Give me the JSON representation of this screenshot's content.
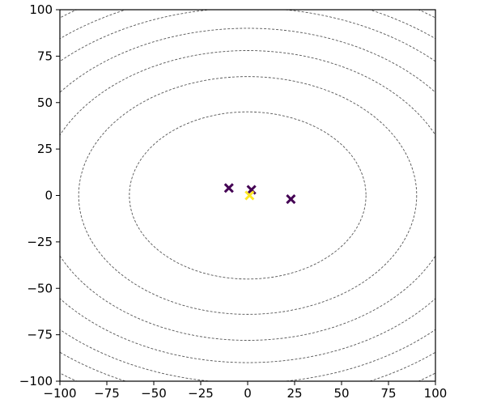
{
  "chart_data": {
    "type": "scatter",
    "marker": "x",
    "series": [
      {
        "color": "#440154",
        "x": [
          -10,
          2,
          23
        ],
        "values": [
          4,
          3,
          -2
        ]
      },
      {
        "color": "#fde725",
        "x": [
          1
        ],
        "values": [
          0
        ]
      }
    ],
    "contours": {
      "center": [
        0,
        0
      ],
      "color": "#555555",
      "rx": [
        63,
        90,
        110,
        127,
        143,
        156,
        168
      ],
      "ry": [
        45,
        64,
        78,
        90,
        101,
        110,
        119
      ]
    },
    "xlim": [
      -100,
      100
    ],
    "ylim": [
      -100,
      100
    ],
    "xticks": [
      {
        "value": -100,
        "label": "−100"
      },
      {
        "value": -75,
        "label": "−75"
      },
      {
        "value": -50,
        "label": "−50"
      },
      {
        "value": -25,
        "label": "−25"
      },
      0,
      25,
      50,
      75,
      100
    ],
    "yticks": [
      {
        "value": -100,
        "label": "−100"
      },
      {
        "value": -75,
        "label": "−75"
      },
      {
        "value": -50,
        "label": "−50"
      },
      {
        "value": -25,
        "label": "−25"
      },
      0,
      25,
      50,
      75,
      100
    ],
    "grid": false
  }
}
